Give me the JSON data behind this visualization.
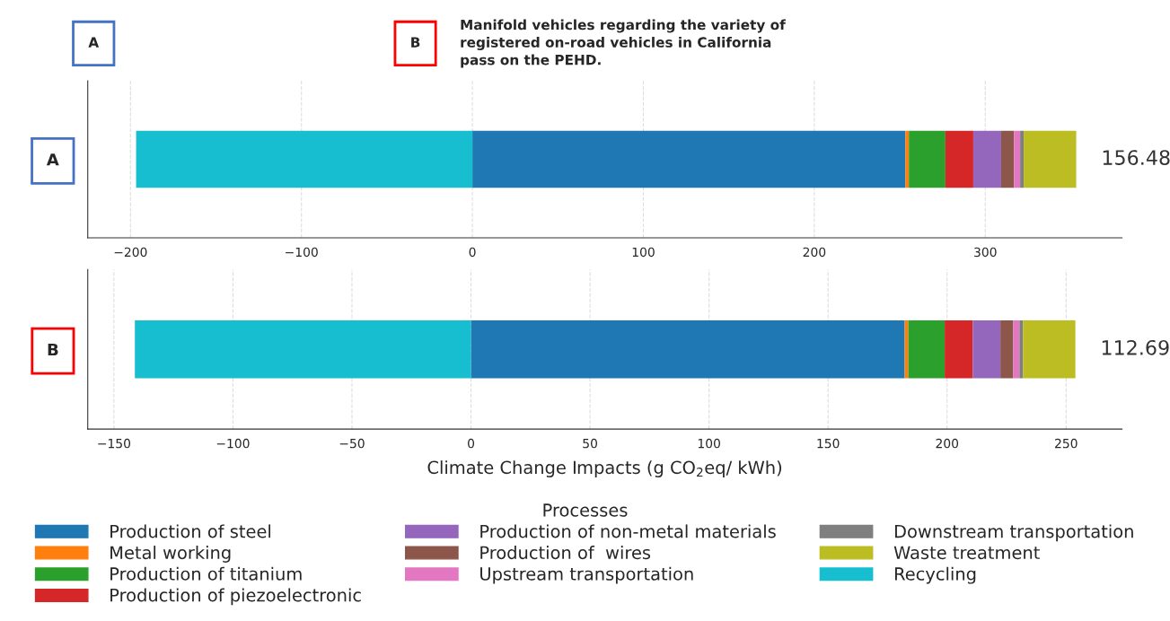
{
  "chart_data": [
    {
      "type": "bar",
      "orientation": "horizontal",
      "stacked": true,
      "categories": [
        "A"
      ],
      "xlim": [
        -225,
        380
      ],
      "xticks": [
        {
          "value": -200,
          "label": "−200"
        },
        {
          "value": -100,
          "label": "−100"
        },
        0,
        100,
        200,
        300
      ],
      "grid": "x",
      "legend": false,
      "annotations": [
        "A",
        "B",
        "Manifold vehicles regarding the variety of\nregistered on-road vehicles in California\npass on the PEHD."
      ],
      "totals": [
        "156.48"
      ],
      "series": [
        {
          "color": "#1f77b4",
          "values": [
            253.3
          ]
        },
        {
          "color": "#ff7f0e",
          "values": [
            2.0
          ]
        },
        {
          "color": "#2ca02c",
          "values": [
            21.4
          ]
        },
        {
          "color": "#d62728",
          "values": [
            16.3
          ]
        },
        {
          "color": "#9467bd",
          "values": [
            16.3
          ]
        },
        {
          "color": "#8c564b",
          "values": [
            7.5
          ]
        },
        {
          "color": "#e377c2",
          "values": [
            3.6
          ]
        },
        {
          "color": "#7f7f7f",
          "values": [
            2.1
          ]
        },
        {
          "color": "#bcbd22",
          "values": [
            30.7
          ]
        },
        {
          "color": "#17becf",
          "values": [
            -196.72
          ]
        }
      ]
    },
    {
      "type": "bar",
      "orientation": "horizontal",
      "stacked": true,
      "categories": [
        "B"
      ],
      "xlim": [
        -161,
        273.5
      ],
      "xticks": [
        {
          "value": -150,
          "label": "−150"
        },
        {
          "value": -100,
          "label": "−100"
        },
        {
          "value": -50,
          "label": "−50"
        },
        0,
        50,
        100,
        150,
        200,
        250
      ],
      "grid": "x",
      "legend": "bottom",
      "legend_title": "Processes",
      "xlabel": "Climate Change Impacts (g CO$_{2}$eq/ kWh)",
      "totals": [
        "112.69"
      ],
      "series": [
        {
          "name": "Production of steel",
          "color": "#1f77b4",
          "values": [
            182.2
          ]
        },
        {
          "name": "Metal working",
          "color": "#ff7f0e",
          "values": [
            1.5
          ]
        },
        {
          "name": "Production of titanium",
          "color": "#2ca02c",
          "values": [
            15.3
          ]
        },
        {
          "name": "Production of piezoelectronic",
          "color": "#d62728",
          "values": [
            11.8
          ]
        },
        {
          "name": "Production of non-metal materials",
          "color": "#9467bd",
          "values": [
            11.6
          ]
        },
        {
          "name": "Production of  wires",
          "color": "#8c564b",
          "values": [
            5.4
          ]
        },
        {
          "name": "Upstream transportation",
          "color": "#e377c2",
          "values": [
            2.6
          ]
        },
        {
          "name": "Downstream transportation",
          "color": "#7f7f7f",
          "values": [
            1.5
          ]
        },
        {
          "name": "Waste treatment",
          "color": "#bcbd22",
          "values": [
            22.0
          ]
        },
        {
          "name": "Recycling",
          "color": "#17becf",
          "values": [
            -141.21
          ]
        }
      ]
    }
  ]
}
